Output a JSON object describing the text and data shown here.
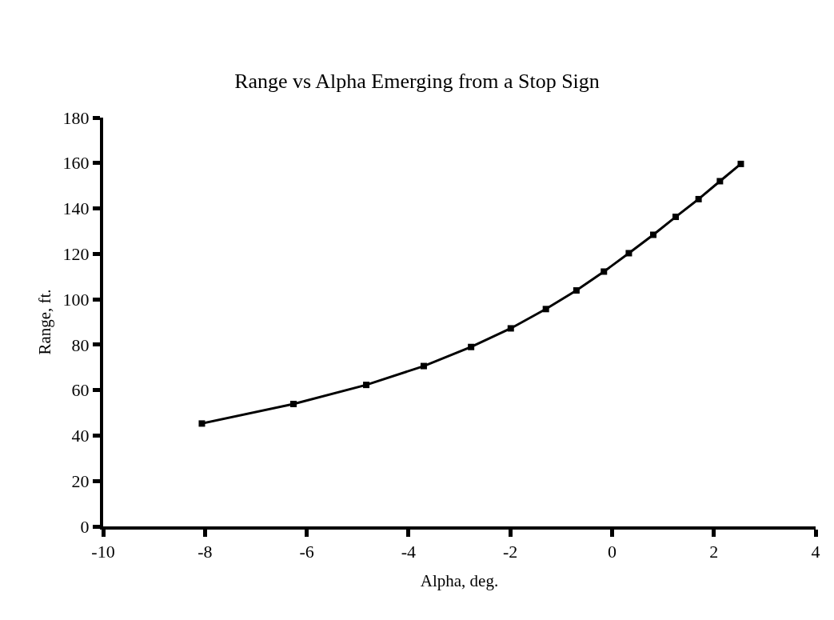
{
  "chart_data": {
    "type": "line",
    "title": "Range vs Alpha Emerging from a Stop Sign",
    "xlabel": "Alpha, deg.",
    "ylabel": "Range, ft.",
    "x": [
      -8.06,
      -6.26,
      -4.83,
      -3.7,
      -2.77,
      -1.99,
      -1.3,
      -0.7,
      -0.16,
      0.33,
      0.81,
      1.25,
      1.7,
      2.12,
      2.53
    ],
    "series": [
      {
        "color": "#000000",
        "values": [
          45.3,
          53.9,
          62.3,
          70.6,
          79.0,
          87.2,
          95.7,
          103.9,
          112.2,
          120.3,
          128.4,
          136.3,
          144.1,
          152.0,
          159.6
        ]
      }
    ],
    "xlim": [
      -10,
      4
    ],
    "xticks": [
      -10,
      -8,
      -6,
      -4,
      -2,
      0,
      2,
      4
    ],
    "ylim": [
      0,
      180
    ],
    "yticks": [
      0,
      20,
      40,
      60,
      80,
      100,
      120,
      140,
      160,
      180
    ],
    "marker": "square",
    "line_style": "solid",
    "legend": false
  }
}
